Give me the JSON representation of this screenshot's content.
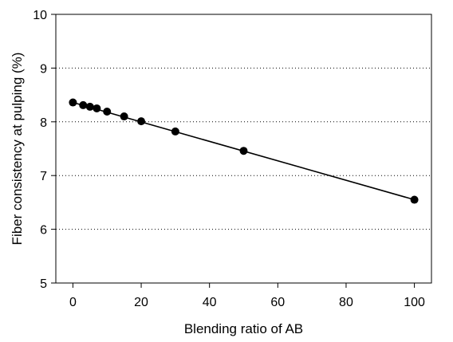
{
  "chart_data": {
    "type": "scatter",
    "xlabel": "Blending ratio of AB",
    "ylabel": "Fiber consistency at pulping (%)",
    "xlim": [
      -5,
      105
    ],
    "ylim": [
      5,
      10
    ],
    "x_ticks": [
      0,
      20,
      40,
      60,
      80,
      100
    ],
    "y_ticks": [
      5,
      6,
      7,
      8,
      9,
      10
    ],
    "grid": "horizontal dotted",
    "legend": "none",
    "series": [
      {
        "x": [
          0,
          3,
          5,
          7,
          10,
          15,
          20,
          30,
          50,
          100
        ],
        "y": [
          8.36,
          8.31,
          8.28,
          8.25,
          8.19,
          8.1,
          8.01,
          7.82,
          7.46,
          6.55
        ],
        "marker": "filled-circle",
        "color": "#000000"
      }
    ],
    "fit_line": {
      "x": [
        0,
        100
      ],
      "y": [
        8.36,
        6.55
      ],
      "color": "#000000"
    }
  }
}
